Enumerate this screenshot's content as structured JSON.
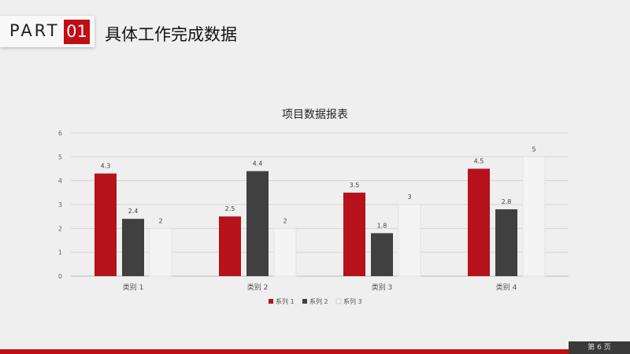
{
  "header": {
    "part_label": "PART",
    "part_number": "01",
    "title": "具体工作完成数据"
  },
  "footer": {
    "page_label": "第 6 页"
  },
  "colors": {
    "accent": "#c00e14",
    "series": [
      "#b5121b",
      "#404040",
      "#f4f4f4"
    ]
  },
  "chart_data": {
    "type": "bar",
    "title": "项目数据报表",
    "categories": [
      "类别 1",
      "类别 2",
      "类别 3",
      "类别 4"
    ],
    "series": [
      {
        "name": "系列 1",
        "values": [
          4.3,
          2.5,
          3.5,
          4.5
        ]
      },
      {
        "name": "系列 2",
        "values": [
          2.4,
          4.4,
          1.8,
          2.8
        ]
      },
      {
        "name": "系列 3",
        "values": [
          2,
          2,
          3,
          5
        ]
      }
    ],
    "ylim": [
      0,
      6
    ],
    "yticks": [
      0,
      1,
      2,
      3,
      4,
      5,
      6
    ],
    "grid": true,
    "legend": "bottom",
    "xlabel": "",
    "ylabel": ""
  }
}
